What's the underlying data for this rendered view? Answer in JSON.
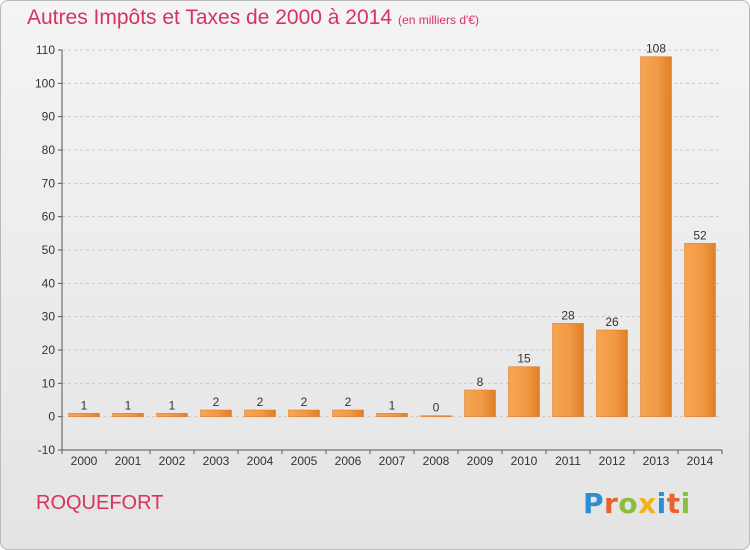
{
  "header": {
    "title": "Autres Impôts et Taxes de 2000 à 2014",
    "unit": "(en milliers d'€)"
  },
  "chart_data": {
    "type": "bar",
    "categories": [
      "2000",
      "2001",
      "2002",
      "2003",
      "2004",
      "2005",
      "2006",
      "2007",
      "2008",
      "2009",
      "2010",
      "2011",
      "2012",
      "2013",
      "2014"
    ],
    "values": [
      1,
      1,
      1,
      2,
      2,
      2,
      2,
      1,
      0,
      8,
      15,
      28,
      26,
      108,
      52
    ],
    "ylim": [
      -10,
      110
    ],
    "yticks": [
      -10,
      0,
      10,
      20,
      30,
      40,
      50,
      60,
      70,
      80,
      90,
      100,
      110
    ],
    "grid": true,
    "bar_color": "#f0923a"
  },
  "footer": {
    "commune": "ROQUEFORT",
    "logo_text": "Proxiti",
    "logo_colors": [
      "#2b8fd6",
      "#e9622b",
      "#8bbf3b",
      "#f2b21a",
      "#2b8fd6",
      "#e9622b",
      "#8bbf3b"
    ]
  }
}
